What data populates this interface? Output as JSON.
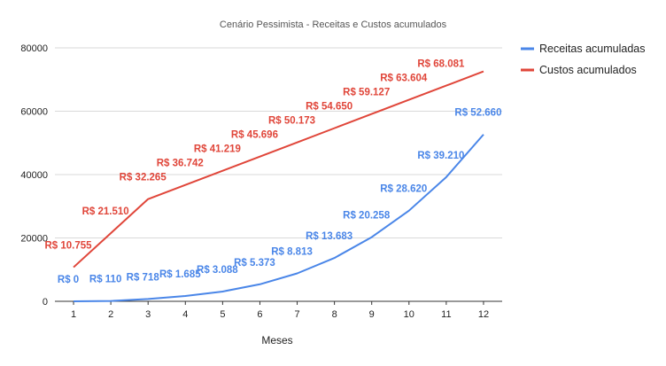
{
  "chart_data": {
    "type": "line",
    "title": "Cenário Pessimista - Receitas e Custos acumulados",
    "xlabel": "Meses",
    "ylabel": "",
    "categories": [
      "1",
      "2",
      "3",
      "4",
      "5",
      "6",
      "7",
      "8",
      "9",
      "10",
      "11",
      "12"
    ],
    "ylim": [
      0,
      80000
    ],
    "yticks": [
      "0",
      "20000",
      "40000",
      "60000",
      "80000"
    ],
    "grid": true,
    "legend_position": "right",
    "series": [
      {
        "name": "Receitas acumuladas",
        "color": "#4a86e8",
        "values": [
          0,
          110,
          718,
          1685,
          3088,
          5373,
          8813,
          13683,
          20258,
          28620,
          39210,
          52660
        ],
        "labels": [
          "R$ 0",
          "R$ 110",
          "R$ 718",
          "R$ 1.685",
          "R$ 3.088",
          "R$ 5.373",
          "R$ 8.813",
          "R$ 13.683",
          "R$ 20.258",
          "R$ 28.620",
          "R$ 39.210",
          "R$ 52.660"
        ]
      },
      {
        "name": "Custos acumulados",
        "color": "#e0463a",
        "values": [
          10755,
          21510,
          32265,
          36742,
          41219,
          45696,
          50173,
          54650,
          59127,
          63604,
          68081,
          72558
        ],
        "labels": [
          "R$ 10.755",
          "R$ 21.510",
          "R$ 32.265",
          "R$ 36.742",
          "R$ 41.219",
          "R$ 45.696",
          "R$ 50.173",
          "R$ 54.650",
          "R$ 59.127",
          "R$ 63.604",
          "R$ 68.081",
          ""
        ]
      }
    ]
  }
}
